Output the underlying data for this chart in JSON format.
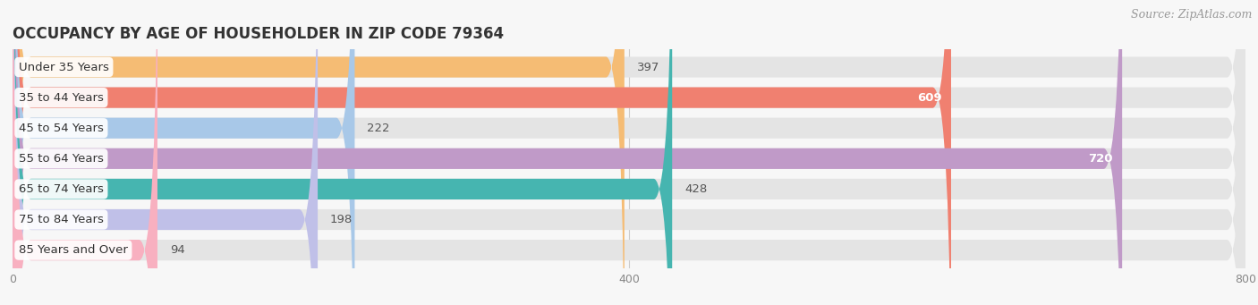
{
  "title": "OCCUPANCY BY AGE OF HOUSEHOLDER IN ZIP CODE 79364",
  "source": "Source: ZipAtlas.com",
  "categories": [
    "Under 35 Years",
    "35 to 44 Years",
    "45 to 54 Years",
    "55 to 64 Years",
    "65 to 74 Years",
    "75 to 84 Years",
    "85 Years and Over"
  ],
  "values": [
    397,
    609,
    222,
    720,
    428,
    198,
    94
  ],
  "bar_colors": [
    "#F5BC74",
    "#F08070",
    "#A8C8E8",
    "#C09AC8",
    "#46B5B0",
    "#C0C0E8",
    "#F8B0C0"
  ],
  "label_colors": [
    "#333333",
    "#ffffff",
    "#333333",
    "#ffffff",
    "#333333",
    "#333333",
    "#333333"
  ],
  "xlim": [
    0,
    800
  ],
  "xticks": [
    0,
    400,
    800
  ],
  "bar_height": 0.68,
  "background_color": "#f7f7f7",
  "bar_bg_color": "#e4e4e4",
  "title_fontsize": 12,
  "label_fontsize": 9.5,
  "value_fontsize": 9.5,
  "source_fontsize": 9,
  "figsize": [
    14.06,
    3.41
  ],
  "dpi": 100
}
